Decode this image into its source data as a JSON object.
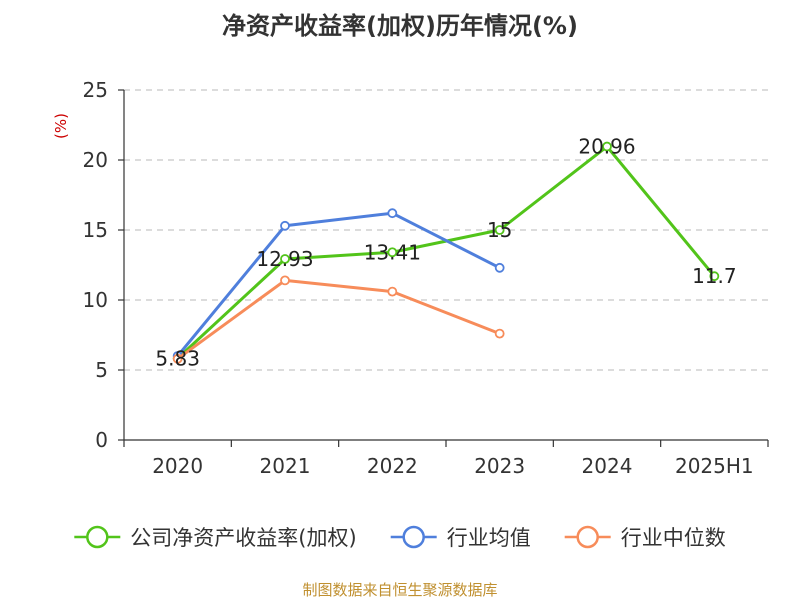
{
  "chart_data": {
    "type": "line",
    "title": "净资产收益率(加权)历年情况(%)",
    "ylabel": "(%)",
    "categories": [
      "2020",
      "2021",
      "2022",
      "2023",
      "2024",
      "2025H1"
    ],
    "ylim": [
      0,
      25
    ],
    "yticks": [
      0,
      5,
      10,
      15,
      20,
      25
    ],
    "grid": true,
    "legend_position": "bottom",
    "series": [
      {
        "name": "公司净资产收益率(加权)",
        "color": "#52c41a",
        "values": [
          5.83,
          12.93,
          13.41,
          15,
          20.96,
          11.7
        ],
        "labels": [
          "5.83",
          "12.93",
          "13.41",
          "15",
          "20.96",
          "11.7"
        ]
      },
      {
        "name": "行业均值",
        "color": "#4f7fdc",
        "values": [
          6.0,
          15.3,
          16.2,
          12.3,
          null,
          null
        ]
      },
      {
        "name": "行业中位数",
        "color": "#f78c5a",
        "values": [
          5.8,
          11.4,
          10.6,
          7.6,
          null,
          null
        ]
      }
    ]
  },
  "source": "制图数据来自恒生聚源数据库"
}
